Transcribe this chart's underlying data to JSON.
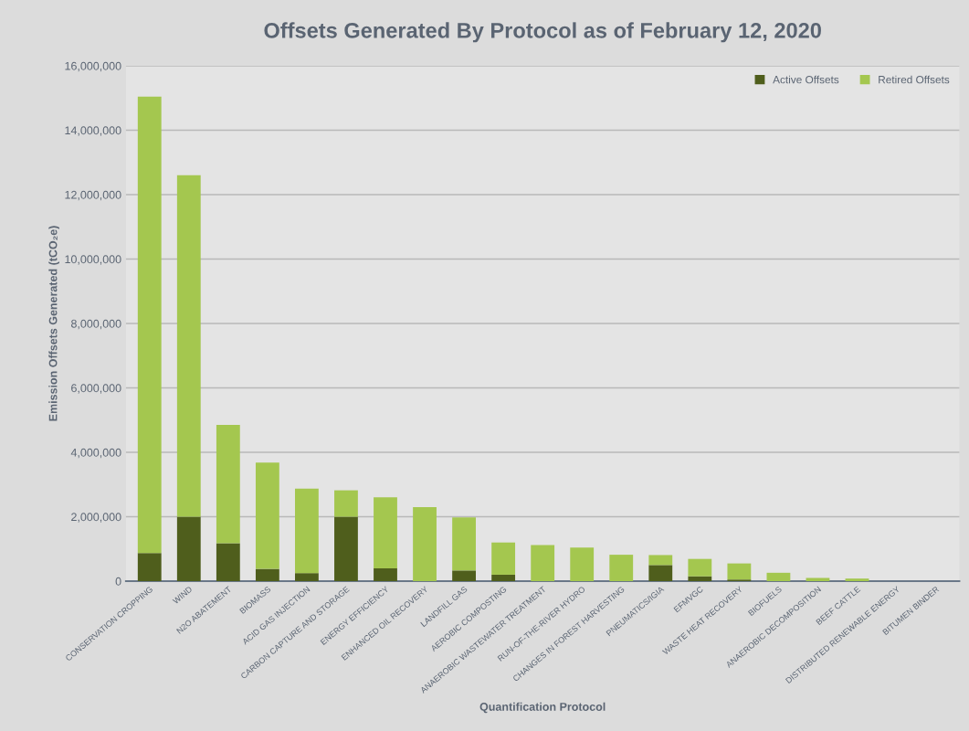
{
  "chart_data": {
    "type": "bar",
    "stacked": true,
    "title": "Offsets Generated By Protocol as of February 12, 2020",
    "xlabel": "Quantification Protocol",
    "ylabel": "Emission Offsets Generated (tCO₂e)",
    "categories": [
      "CONSERVATION CROPPING",
      "WIND",
      "N2O ABATEMENT",
      "BIOMASS",
      "ACID GAS INJECTION",
      "CARBON CAPTURE AND STORAGE",
      "ENERGY EFFICIENCY",
      "ENHANCED OIL RECOVERY",
      "LANDFILL GAS",
      "AEROBIC COMPOSTING",
      "ANAEROBIC WASTEWATER TREATMENT",
      "RUN-OF-THE-RIVER HYDRO",
      "CHANGES IN FOREST HARVESTING",
      "PNEUMATICS/IGIA",
      "EFMVGC",
      "WASTE HEAT RECOVERY",
      "BIOFUELS",
      "ANAEROBIC DECOMPOSITION",
      "BEEF CATTLE",
      "DISTRIBUTED RENEWABLE ENERGY",
      "BITUMEN BINDER"
    ],
    "series": [
      {
        "name": "Active Offsets",
        "color": "#4f5e1c",
        "values": [
          870000,
          2000000,
          1180000,
          380000,
          250000,
          2000000,
          400000,
          0,
          330000,
          200000,
          0,
          0,
          0,
          500000,
          150000,
          50000,
          0,
          0,
          0,
          0,
          0
        ]
      },
      {
        "name": "Retired Offsets",
        "color": "#a4c74f",
        "values": [
          14170000,
          10600000,
          3670000,
          3300000,
          2620000,
          820000,
          2200000,
          2300000,
          1650000,
          1000000,
          1120000,
          1040000,
          820000,
          310000,
          540000,
          500000,
          260000,
          100000,
          80000,
          null,
          0
        ]
      }
    ],
    "ylim": [
      0,
      16000000
    ],
    "yticks": [
      {
        "value": 0,
        "label": "0"
      },
      {
        "value": 2000000,
        "label": "2,000,000"
      },
      {
        "value": 4000000,
        "label": "4,000,000"
      },
      {
        "value": 6000000,
        "label": "6,000,000"
      },
      {
        "value": 8000000,
        "label": "8,000,000"
      },
      {
        "value": 10000000,
        "label": "10,000,000"
      },
      {
        "value": 12000000,
        "label": "12,000,000"
      },
      {
        "value": 14000000,
        "label": "14,000,000"
      },
      {
        "value": 16000000,
        "label": "16,000,000"
      }
    ],
    "grid": "y",
    "legend": "top right"
  }
}
